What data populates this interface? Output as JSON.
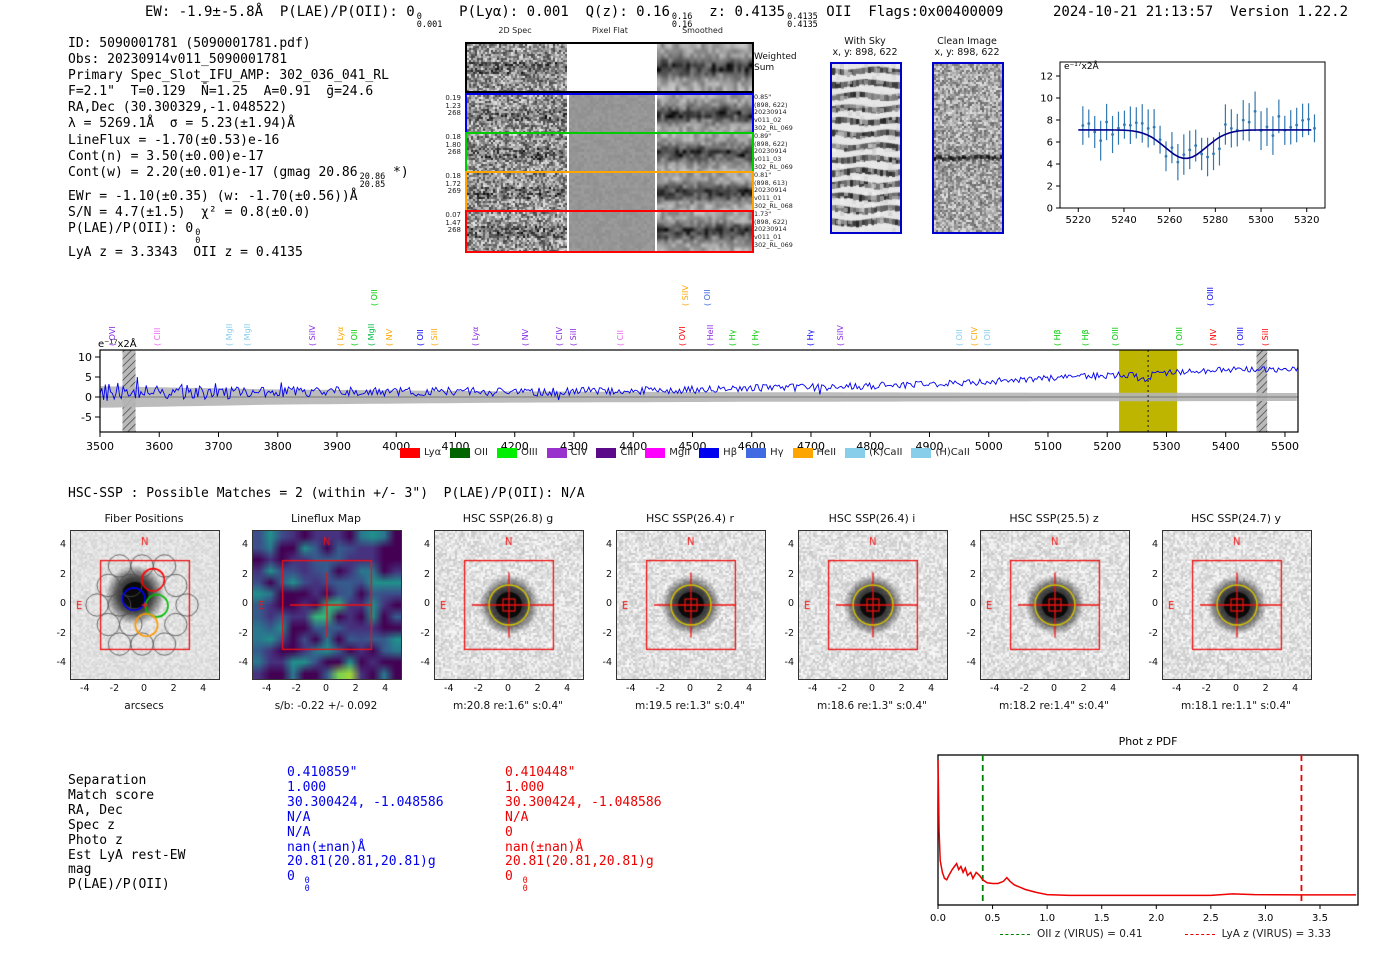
{
  "header": {
    "segments": [
      {
        "t": "EW: -1.9±-5.8Å  P(LAE)/P(OII): 0"
      },
      {
        "hi": "0",
        "lo": "0.001"
      },
      {
        "t": "  P(Lyα): 0.001  Q(z): 0.16"
      },
      {
        "hi": "0.16",
        "lo": "0.16"
      },
      {
        "t": "  z: 0.4135"
      },
      {
        "hi": "0.4135",
        "lo": "0.4135"
      },
      {
        "t": " OII  Flags:0x00400009"
      }
    ],
    "timestamp": "2024-10-21 21:13:57",
    "version": "Version 1.22.2"
  },
  "info_block": {
    "lines": [
      [
        {
          "t": "ID: 5090001781 (5090001781.pdf)"
        }
      ],
      [
        {
          "t": "Obs: 20230914v011_5090001781"
        }
      ],
      [
        {
          "t": "Primary Spec_Slot_IFU_AMP: 302_036_041_RL"
        }
      ],
      [
        {
          "t": "F=2.1\"  T=0.129  N̄=1.25  A=0.91  ḡ=24.6"
        }
      ],
      [
        {
          "t": "RA,Dec (30.300329,-1.048522)"
        }
      ],
      [
        {
          "t": "λ = 5269.1Å  σ = 5.23(±1.94)Å"
        }
      ],
      [
        {
          "t": "LineFlux = -1.70(±0.53)e-16"
        }
      ],
      [
        {
          "t": "Cont(n) = 3.50(±0.00)e-17"
        }
      ],
      [
        {
          "t": "Cont(w) = 2.20(±0.01)e-17 (gmag 20.86"
        },
        {
          "hi": "20.86",
          "lo": "20.85"
        },
        {
          "t": " *)"
        }
      ],
      [
        {
          "t": "EWr = -1.10(±0.35) (w: -1.70(±0.56))Å"
        }
      ],
      [
        {
          "t": "S/N = 4.7(±1.5)  χ² = 0.8(±0.0)"
        }
      ],
      [
        {
          "t": "P(LAE)/P(OII): 0"
        },
        {
          "hi": "0",
          "lo": "0"
        }
      ],
      [
        {
          "t": "LyA z = 3.3343  OII z = 0.4135"
        }
      ]
    ]
  },
  "spec2d": {
    "col_titles": [
      "2D Spec",
      "Pixel Flat",
      "Smoothed"
    ],
    "rows": [
      {
        "border": "#000000",
        "left_nums": [],
        "annotation": [
          "Weighted",
          "Sum"
        ],
        "flat": "white"
      },
      {
        "border": "#0000ee",
        "left_nums": [
          "0.19",
          "1.23",
          "268"
        ],
        "annotation": [
          "0.85\"",
          "(898, 622)",
          "20230914",
          "v011_02",
          "302_RL_069"
        ],
        "flat": "gray"
      },
      {
        "border": "#00cc00",
        "left_nums": [
          "0.18",
          "1.80",
          "268"
        ],
        "annotation": [
          "0.89\"",
          "(898, 622)",
          "20230914",
          "v011_03",
          "302_RL_069"
        ],
        "flat": "gray"
      },
      {
        "border": "#ffa500",
        "left_nums": [
          "0.18",
          "1.72",
          "269"
        ],
        "annotation": [
          "0.81\"",
          "(898, 613)",
          "20230914",
          "v011_01",
          "302_RL_068"
        ],
        "flat": "gray"
      },
      {
        "border": "#ff0000",
        "left_nums": [
          "0.07",
          "1.47",
          "268"
        ],
        "annotation": [
          "1.73\"",
          "(898, 622)",
          "20230914",
          "v011_01",
          "302_RL_069"
        ],
        "flat": "gray"
      }
    ]
  },
  "sky_panels": {
    "with_sky": {
      "title": "With Sky",
      "subtitle": "x, y: 898, 622"
    },
    "clean": {
      "title": "Clean Image",
      "subtitle": "x, y: 898, 622"
    },
    "border": "#0000cc"
  },
  "chart_data": [
    {
      "id": "line_fit_plot",
      "type": "scatter",
      "unit_label": "e⁻¹⁷x2Å",
      "xlim": [
        5212,
        5328
      ],
      "ylim": [
        -0.5,
        12.8
      ],
      "xticks": [
        5220,
        5240,
        5260,
        5280,
        5300,
        5320
      ],
      "yticks": [
        0,
        2,
        4,
        6,
        8,
        10,
        12
      ],
      "fit": {
        "continuum": 7.1,
        "dip_center": 5267,
        "dip_depth": 2.6,
        "dip_sigma": 9
      },
      "point_step": 2.6,
      "point_error": 1.25,
      "point_color": "#3179b1",
      "fit_color": "#00008b"
    },
    {
      "id": "main_spectrum",
      "type": "line",
      "unit_label": "e⁻¹⁷x2Å",
      "xlim": [
        3500,
        5522
      ],
      "ylim": [
        -8.75,
        11.75
      ],
      "xticks": [
        3500,
        3600,
        3700,
        3800,
        3900,
        4000,
        4100,
        4200,
        4300,
        4400,
        4500,
        4600,
        4700,
        4800,
        4900,
        5000,
        5100,
        5200,
        5300,
        5400,
        5500
      ],
      "yticks": [
        -5,
        0,
        5,
        10
      ],
      "line_color": "#0000ee",
      "baseline": [
        [
          3500,
          1.2
        ],
        [
          3600,
          1.5
        ],
        [
          3700,
          1.0
        ],
        [
          3800,
          1.2
        ],
        [
          3900,
          1.4
        ],
        [
          4000,
          1.2
        ],
        [
          4100,
          1.4
        ],
        [
          4200,
          1.2
        ],
        [
          4300,
          1.4
        ],
        [
          4400,
          1.6
        ],
        [
          4500,
          1.8
        ],
        [
          4600,
          2.2
        ],
        [
          4700,
          2.4
        ],
        [
          4800,
          2.8
        ],
        [
          4900,
          3.2
        ],
        [
          5000,
          3.8
        ],
        [
          5100,
          4.6
        ],
        [
          5150,
          5.2
        ],
        [
          5200,
          5.4
        ],
        [
          5240,
          5.6
        ],
        [
          5265,
          4.0
        ],
        [
          5280,
          6.2
        ],
        [
          5300,
          6.0
        ],
        [
          5320,
          6.2
        ],
        [
          5350,
          6.4
        ],
        [
          5400,
          6.8
        ],
        [
          5450,
          7.0
        ],
        [
          5480,
          6.8
        ],
        [
          5522,
          6.9
        ]
      ],
      "noise_amp": [
        [
          3500,
          2.8
        ],
        [
          3600,
          2.2
        ],
        [
          3700,
          1.8
        ],
        [
          3800,
          1.5
        ],
        [
          3900,
          1.4
        ],
        [
          4100,
          1.2
        ],
        [
          4400,
          1.1
        ],
        [
          4800,
          1.0
        ],
        [
          5200,
          0.9
        ],
        [
          5522,
          0.8
        ]
      ],
      "err_halfwidth": [
        [
          3500,
          2.7
        ],
        [
          3800,
          1.9
        ],
        [
          4200,
          1.4
        ],
        [
          4600,
          1.2
        ],
        [
          5000,
          1.1
        ],
        [
          5522,
          1.0
        ]
      ],
      "highlight_band": {
        "x0": 5220,
        "x1": 5318,
        "color": "#bdb500"
      },
      "marker_line": 5269,
      "hatched_bands": [
        [
          3538,
          3560
        ],
        [
          5452,
          5470
        ]
      ]
    },
    {
      "id": "phot_z_pdf",
      "type": "line",
      "title": "Phot z PDF",
      "xlim": [
        0,
        3.83
      ],
      "xticks": [
        "0.0",
        "0.5",
        "1.0",
        "1.5",
        "2.0",
        "2.5",
        "3.0",
        "3.5"
      ],
      "color": "#ee0000",
      "curve": [
        [
          0,
          0.98
        ],
        [
          0.01,
          0.5
        ],
        [
          0.02,
          0.3
        ],
        [
          0.04,
          0.22
        ],
        [
          0.06,
          0.18
        ],
        [
          0.08,
          0.17
        ],
        [
          0.1,
          0.2
        ],
        [
          0.13,
          0.24
        ],
        [
          0.15,
          0.26
        ],
        [
          0.17,
          0.28
        ],
        [
          0.19,
          0.24
        ],
        [
          0.21,
          0.26
        ],
        [
          0.23,
          0.22
        ],
        [
          0.25,
          0.25
        ],
        [
          0.27,
          0.2
        ],
        [
          0.3,
          0.22
        ],
        [
          0.32,
          0.18
        ],
        [
          0.35,
          0.22
        ],
        [
          0.38,
          0.2
        ],
        [
          0.41,
          0.17
        ],
        [
          0.45,
          0.15
        ],
        [
          0.5,
          0.145
        ],
        [
          0.55,
          0.145
        ],
        [
          0.6,
          0.16
        ],
        [
          0.63,
          0.185
        ],
        [
          0.66,
          0.16
        ],
        [
          0.7,
          0.135
        ],
        [
          0.75,
          0.12
        ],
        [
          0.8,
          0.105
        ],
        [
          0.9,
          0.085
        ],
        [
          1.0,
          0.07
        ],
        [
          1.2,
          0.065
        ],
        [
          1.5,
          0.065
        ],
        [
          2.0,
          0.065
        ],
        [
          2.5,
          0.065
        ],
        [
          2.7,
          0.075
        ],
        [
          2.9,
          0.07
        ],
        [
          3.3,
          0.068
        ],
        [
          3.6,
          0.068
        ],
        [
          3.83,
          0.068
        ]
      ],
      "vlines": [
        {
          "x": 0.41,
          "color": "#008000",
          "label": "OII z (VIRUS) = 0.41"
        },
        {
          "x": 3.33,
          "color": "#ee0000",
          "label": "LyA z (VIRUS) = 3.33"
        }
      ]
    }
  ],
  "line_labels": [
    {
      "x": 115,
      "text": "OVI",
      "color": "#8a2be2",
      "raised": false
    },
    {
      "x": 160,
      "text": "CIII",
      "color": "#ee66ee",
      "raised": false
    },
    {
      "x": 232,
      "text": "MgII",
      "color": "#87ceeb",
      "raised": false
    },
    {
      "x": 250,
      "text": "MgII",
      "color": "#87ceeb",
      "raised": false
    },
    {
      "x": 315,
      "text": "SiIV",
      "color": "#8a2be2",
      "raised": false
    },
    {
      "x": 343,
      "text": "Lyα",
      "color": "#ffa500",
      "raised": false
    },
    {
      "x": 357,
      "text": "OII",
      "color": "#00cc00",
      "raised": false
    },
    {
      "x": 377,
      "text": "OII",
      "color": "#00cc00",
      "raised": true
    },
    {
      "x": 374,
      "text": "MgII",
      "color": "#00bb44",
      "raised": false
    },
    {
      "x": 392,
      "text": "NV",
      "color": "#ffa500",
      "raised": false
    },
    {
      "x": 423,
      "text": "OII",
      "color": "#0000ee",
      "raised": false
    },
    {
      "x": 437,
      "text": "SiII",
      "color": "#ffa500",
      "raised": false
    },
    {
      "x": 478,
      "text": "Lyα",
      "color": "#8a2be2",
      "raised": false
    },
    {
      "x": 528,
      "text": "NV",
      "color": "#8a2be2",
      "raised": false
    },
    {
      "x": 562,
      "text": "CIV",
      "color": "#8a2be2",
      "raised": false
    },
    {
      "x": 576,
      "text": "SiII",
      "color": "#8a2be2",
      "raised": false
    },
    {
      "x": 623,
      "text": "CII",
      "color": "#ee66ee",
      "raised": false
    },
    {
      "x": 685,
      "text": "OVI",
      "color": "#ff0000",
      "raised": false
    },
    {
      "x": 688,
      "text": "SiIV",
      "color": "#ffa500",
      "raised": true
    },
    {
      "x": 710,
      "text": "OII",
      "color": "#4169e1",
      "raised": true
    },
    {
      "x": 713,
      "text": "HeII",
      "color": "#8a2be2",
      "raised": false
    },
    {
      "x": 735,
      "text": "Hγ",
      "color": "#00cc00",
      "raised": false
    },
    {
      "x": 758,
      "text": "Hγ",
      "color": "#00cc00",
      "raised": false
    },
    {
      "x": 813,
      "text": "Hγ",
      "color": "#0000ee",
      "raised": false
    },
    {
      "x": 843,
      "text": "SiIV",
      "color": "#8a2be2",
      "raised": false
    },
    {
      "x": 962,
      "text": "OII",
      "color": "#87ceeb",
      "raised": false
    },
    {
      "x": 977,
      "text": "CIV",
      "color": "#ffa500",
      "raised": false
    },
    {
      "x": 990,
      "text": "OII",
      "color": "#87ceeb",
      "raised": false
    },
    {
      "x": 1060,
      "text": "Hβ",
      "color": "#00cc00",
      "raised": false
    },
    {
      "x": 1088,
      "text": "Hβ",
      "color": "#00cc00",
      "raised": false
    },
    {
      "x": 1118,
      "text": "OIII",
      "color": "#00cc00",
      "raised": false
    },
    {
      "x": 1182,
      "text": "OIII",
      "color": "#00cc00",
      "raised": false
    },
    {
      "x": 1213,
      "text": "OIII",
      "color": "#0000ee",
      "raised": true
    },
    {
      "x": 1216,
      "text": "NV",
      "color": "#ff0000",
      "raised": false
    },
    {
      "x": 1243,
      "text": "OIII",
      "color": "#0000ee",
      "raised": false
    },
    {
      "x": 1268,
      "text": "SiII",
      "color": "#ff0000",
      "raised": false
    }
  ],
  "spectrum_legend": [
    {
      "label": "Lyα",
      "color": "#ff0000"
    },
    {
      "label": "OII",
      "color": "#006400"
    },
    {
      "label": "OIII",
      "color": "#00ee00"
    },
    {
      "label": "CIV",
      "color": "#9932cc"
    },
    {
      "label": "CIII",
      "color": "#5c0a8a"
    },
    {
      "label": "MgII",
      "color": "#ff00ff"
    },
    {
      "label": "Hβ",
      "color": "#0000ee"
    },
    {
      "label": "Hγ",
      "color": "#4169e1"
    },
    {
      "label": "HeII",
      "color": "#ffa500"
    },
    {
      "label": "(K)CaII",
      "color": "#87ceeb"
    },
    {
      "label": "(H)CaII",
      "color": "#87ceeb"
    }
  ],
  "hsc_header": "HSC-SSP : Possible Matches = 2 (within +/- 3\")  P(LAE)/P(OII): N/A",
  "cutouts": {
    "panels": [
      {
        "title": "Fiber Positions",
        "bottom_label": "arcsecs",
        "type": "fiber"
      },
      {
        "title": "Lineflux Map",
        "bottom_label": "s/b: -0.22 +/- 0.092",
        "type": "lineflux"
      },
      {
        "title": "HSC SSP(26.8) g",
        "bottom_label": "m:20.8 re:1.6\" s:0.4\"",
        "type": "hsc"
      },
      {
        "title": "HSC SSP(26.4) r",
        "bottom_label": "m:19.5 re:1.3\" s:0.4\"",
        "type": "hsc"
      },
      {
        "title": "HSC SSP(26.4) i",
        "bottom_label": "m:18.6 re:1.3\" s:0.4\"",
        "type": "hsc"
      },
      {
        "title": "HSC SSP(25.5) z",
        "bottom_label": "m:18.2 re:1.4\" s:0.4\"",
        "type": "hsc"
      },
      {
        "title": "HSC SSP(24.7) y",
        "bottom_label": "m:18.1 re:1.1\" s:0.4\"",
        "type": "hsc"
      }
    ],
    "xticks": [
      "-4",
      "-2",
      "0",
      "2",
      "4"
    ],
    "yticks": [
      "4",
      "2",
      "0",
      "-2",
      "-4"
    ],
    "north_label": "N",
    "east_label": "E"
  },
  "match_table": {
    "labels": [
      "Separation",
      "Match score",
      "RA, Dec",
      "Spec z",
      "Photo z",
      "Est LyA rest-EW",
      "mag",
      "P(LAE)/P(OII)"
    ],
    "columns": [
      {
        "color": "#0000ee",
        "values": [
          [
            {
              "t": "0.410859\""
            }
          ],
          [
            {
              "t": "1.000"
            }
          ],
          [
            {
              "t": "30.300424, -1.048586"
            }
          ],
          [
            {
              "t": "N/A"
            }
          ],
          [
            {
              "t": "N/A"
            }
          ],
          [
            {
              "t": "nan(±nan)Å"
            }
          ],
          [
            {
              "t": "20.81(20.81,20.81)g"
            }
          ],
          [
            {
              "t": "0 "
            },
            {
              "hi": "0",
              "lo": "0"
            }
          ]
        ]
      },
      {
        "color": "#ee0000",
        "values": [
          [
            {
              "t": "0.410448\""
            }
          ],
          [
            {
              "t": "1.000"
            }
          ],
          [
            {
              "t": "30.300424, -1.048586"
            }
          ],
          [
            {
              "t": "N/A"
            }
          ],
          [
            {
              "t": "0"
            }
          ],
          [
            {
              "t": "nan(±nan)Å"
            }
          ],
          [
            {
              "t": "20.81(20.81,20.81)g"
            }
          ],
          [
            {
              "t": "0 "
            },
            {
              "hi": "0",
              "lo": "0"
            }
          ]
        ]
      }
    ]
  }
}
